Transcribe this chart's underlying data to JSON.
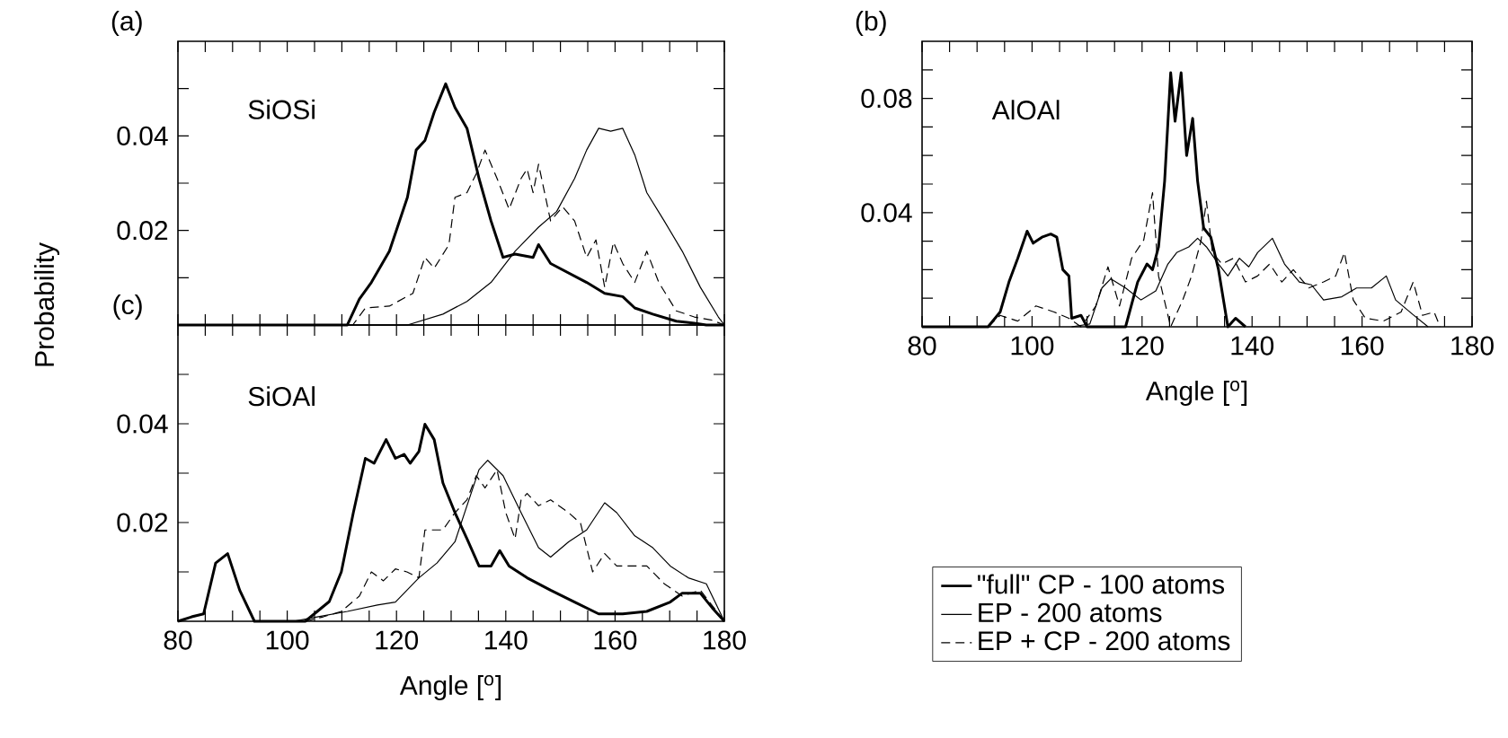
{
  "chart_data": [
    {
      "type": "line",
      "title": "(a)",
      "annotations": [
        "SiOSi"
      ],
      "ylabel": "Probability",
      "xlim": [
        80,
        180
      ],
      "ylim": [
        0,
        0.06
      ],
      "xticks": [
        80,
        {
          "value": 85,
          "label": null
        },
        {
          "value": 90,
          "label": null
        },
        {
          "value": 95,
          "label": null
        },
        100,
        {
          "value": 105,
          "label": null
        },
        {
          "value": 110,
          "label": null
        },
        {
          "value": 115,
          "label": null
        },
        120,
        {
          "value": 125,
          "label": null
        },
        {
          "value": 130,
          "label": null
        },
        {
          "value": 135,
          "label": null
        },
        140,
        {
          "value": 145,
          "label": null
        },
        {
          "value": 150,
          "label": null
        },
        {
          "value": 155,
          "label": null
        },
        160,
        {
          "value": 165,
          "label": null
        },
        {
          "value": 170,
          "label": null
        },
        {
          "value": 175,
          "label": null
        },
        180
      ],
      "yticks": [
        {
          "value": 0.01,
          "label": null
        },
        {
          "value": 0.02,
          "label": "0.02"
        },
        {
          "value": 0.03,
          "label": null
        },
        {
          "value": 0.04,
          "label": "0.04"
        },
        {
          "value": 0.05,
          "label": null
        }
      ],
      "tick_labels": "y",
      "series": [
        {
          "color": "#000000",
          "line_style": "solid",
          "x": [
            80,
            111,
            113.2,
            115.4,
            118.7,
            122,
            123.6,
            125.2,
            126.9,
            129,
            130.7,
            132.9,
            135.1,
            137.3,
            139.5,
            141.7,
            145,
            146,
            148.2,
            151.5,
            154.8,
            158.1,
            161.4,
            163.6,
            166.9,
            171.2,
            174.5,
            176.7,
            180
          ],
          "values": [
            0,
            0,
            0.0055,
            0.009,
            0.0156,
            0.027,
            0.037,
            0.039,
            0.045,
            0.051,
            0.046,
            0.0416,
            0.031,
            0.022,
            0.0143,
            0.015,
            0.0143,
            0.017,
            0.013,
            0.011,
            0.009,
            0.0067,
            0.006,
            0.0036,
            0.0023,
            0.0008,
            0.0004,
            0,
            0
          ]
        },
        {
          "color": "#000000",
          "line_style": "solid",
          "x": [
            80,
            122,
            128.5,
            132.9,
            137.3,
            141.7,
            146,
            149.3,
            152.6,
            154.8,
            157,
            159.2,
            161.4,
            163.6,
            165.8,
            169,
            172.3,
            175.6,
            178.9,
            180
          ],
          "values": [
            0,
            0,
            0.0023,
            0.005,
            0.009,
            0.0156,
            0.0207,
            0.024,
            0.031,
            0.037,
            0.0416,
            0.041,
            0.0416,
            0.036,
            0.028,
            0.022,
            0.0156,
            0.008,
            0.0017,
            0
          ]
        },
        {
          "color": "#000000",
          "line_style": "dashed",
          "x": [
            80,
            112,
            114.3,
            118.7,
            123,
            125.2,
            126.9,
            129.6,
            130.7,
            132.9,
            134.6,
            136.2,
            138.4,
            140.6,
            142.8,
            143.9,
            145,
            146,
            148.2,
            150.4,
            152.6,
            154.8,
            156.5,
            158.1,
            159.7,
            161.4,
            163.6,
            165.8,
            168,
            171.2,
            174.5,
            177.8,
            180
          ],
          "values": [
            0,
            0,
            0.0036,
            0.004,
            0.0067,
            0.0143,
            0.012,
            0.017,
            0.027,
            0.028,
            0.032,
            0.037,
            0.031,
            0.0245,
            0.031,
            0.033,
            0.028,
            0.034,
            0.022,
            0.025,
            0.022,
            0.0143,
            0.018,
            0.008,
            0.0175,
            0.013,
            0.009,
            0.0156,
            0.009,
            0.003,
            0.0017,
            0.001,
            0
          ]
        }
      ]
    },
    {
      "type": "line",
      "title": "(b)",
      "annotations": [
        "AlOAl"
      ],
      "xlabel": "Angle [$^{o}$]",
      "xlim": [
        80,
        180
      ],
      "ylim": [
        0,
        0.1
      ],
      "xticks": [
        80,
        {
          "value": 85,
          "label": null
        },
        {
          "value": 90,
          "label": null
        },
        {
          "value": 95,
          "label": null
        },
        100,
        {
          "value": 105,
          "label": null
        },
        {
          "value": 110,
          "label": null
        },
        {
          "value": 115,
          "label": null
        },
        120,
        {
          "value": 125,
          "label": null
        },
        {
          "value": 130,
          "label": null
        },
        {
          "value": 135,
          "label": null
        },
        140,
        {
          "value": 145,
          "label": null
        },
        {
          "value": 150,
          "label": null
        },
        {
          "value": 155,
          "label": null
        },
        160,
        {
          "value": 165,
          "label": null
        },
        {
          "value": 170,
          "label": null
        },
        {
          "value": 175,
          "label": null
        },
        180
      ],
      "yticks": [
        {
          "value": 0.01,
          "label": null
        },
        {
          "value": 0.02,
          "label": null
        },
        {
          "value": 0.03,
          "label": null
        },
        {
          "value": 0.04,
          "label": "0.04"
        },
        {
          "value": 0.05,
          "label": null
        },
        {
          "value": 0.06,
          "label": null
        },
        {
          "value": 0.07,
          "label": null
        },
        {
          "value": 0.08,
          "label": "0.08"
        },
        {
          "value": 0.09,
          "label": null
        }
      ],
      "legend": "bottom",
      "series": [
        {
          "name": "\"full\" CP - 100 atoms",
          "color": "#000000",
          "line_style": "solid",
          "x": [
            80,
            92,
            94.2,
            95.8,
            97.4,
            99.1,
            100.2,
            101.8,
            103.4,
            104.5,
            105.6,
            106.7,
            107.2,
            108.9,
            110,
            117,
            119.2,
            120.9,
            121.9,
            123,
            124.1,
            125.2,
            126,
            127.1,
            128.1,
            129.2,
            130.1,
            131.2,
            132.5,
            133.9,
            135.6,
            137,
            138.8
          ],
          "values": [
            0,
            0,
            0.0052,
            0.0157,
            0.024,
            0.0335,
            0.0293,
            0.0314,
            0.0325,
            0.0314,
            0.02,
            0.0178,
            0.003,
            0.004,
            0,
            0,
            0.0157,
            0.022,
            0.02,
            0.028,
            0.051,
            0.089,
            0.072,
            0.089,
            0.06,
            0.073,
            0.051,
            0.0346,
            0.0314,
            0.02,
            0,
            0.003,
            0
          ]
        },
        {
          "name": "EP - 200 atoms",
          "color": "#000000",
          "line_style": "solid",
          "x": [
            107.2,
            110.5,
            112.7,
            114.3,
            117,
            119.8,
            122.5,
            124.7,
            126.3,
            128.5,
            130.1,
            131.7,
            133.9,
            135.6,
            137.7,
            139.4,
            141,
            143.7,
            145.9,
            148.6,
            150.8,
            153,
            156.3,
            159,
            161.7,
            164.4,
            166.1,
            169.3,
            172
          ],
          "values": [
            0,
            0.001,
            0.0136,
            0.0168,
            0.0136,
            0.0094,
            0.0126,
            0.022,
            0.026,
            0.028,
            0.031,
            0.028,
            0.022,
            0.0178,
            0.024,
            0.021,
            0.026,
            0.031,
            0.022,
            0.0157,
            0.0147,
            0.0094,
            0.0105,
            0.0136,
            0.0136,
            0.0178,
            0.0094,
            0.0042,
            0
          ]
        },
        {
          "name": "EP + CP - 200 atoms",
          "color": "#000000",
          "line_style": "dashed",
          "x": [
            92,
            94.2,
            97.4,
            100.7,
            104,
            106.7,
            108.9,
            111.6,
            113.8,
            115.9,
            118.1,
            120.3,
            121.9,
            123,
            125.2,
            127.4,
            129,
            130.7,
            131.7,
            132.8,
            134.5,
            136.6,
            138.8,
            141,
            143.2,
            145.4,
            147.5,
            150.3,
            153,
            155.2,
            156.8,
            158.4,
            160.6,
            163.9,
            167.1,
            169.3,
            171,
            173.1,
            174.2
          ],
          "values": [
            0,
            0.004,
            0.002,
            0.0073,
            0.0052,
            0.003,
            0,
            0.0073,
            0.021,
            0.0073,
            0.024,
            0.0304,
            0.047,
            0.0178,
            0,
            0.0094,
            0.0178,
            0.03,
            0.044,
            0.026,
            0.022,
            0.024,
            0.0157,
            0.0178,
            0.022,
            0.0157,
            0.02,
            0.0136,
            0.0157,
            0.0178,
            0.026,
            0.0094,
            0.003,
            0.002,
            0.0052,
            0.0157,
            0.004,
            0.0052,
            0
          ]
        }
      ]
    },
    {
      "type": "line",
      "title": "(c)",
      "annotations": [
        "SiOAl"
      ],
      "xlabel": "Angle [$^{o}$]",
      "xlim": [
        80,
        180
      ],
      "ylim": [
        0,
        0.06
      ],
      "xticks": [
        80,
        {
          "value": 85,
          "label": null
        },
        {
          "value": 90,
          "label": null
        },
        {
          "value": 95,
          "label": null
        },
        100,
        {
          "value": 105,
          "label": null
        },
        {
          "value": 110,
          "label": null
        },
        {
          "value": 115,
          "label": null
        },
        120,
        {
          "value": 125,
          "label": null
        },
        {
          "value": 130,
          "label": null
        },
        {
          "value": 135,
          "label": null
        },
        140,
        {
          "value": 145,
          "label": null
        },
        {
          "value": 150,
          "label": null
        },
        {
          "value": 155,
          "label": null
        },
        160,
        {
          "value": 165,
          "label": null
        },
        {
          "value": 170,
          "label": null
        },
        {
          "value": 175,
          "label": null
        },
        180
      ],
      "yticks": [
        {
          "value": 0.01,
          "label": null
        },
        {
          "value": 0.02,
          "label": "0.02"
        },
        {
          "value": 0.03,
          "label": null
        },
        {
          "value": 0.04,
          "label": "0.04"
        },
        {
          "value": 0.05,
          "label": null
        }
      ],
      "series": [
        {
          "color": "#000000",
          "line_style": "solid",
          "x": [
            80,
            82.5,
            84.7,
            86.9,
            89.1,
            91.3,
            94,
            103.3,
            107.7,
            109.9,
            112.1,
            114.3,
            115.9,
            118.1,
            119.8,
            121.4,
            122.5,
            124.1,
            125.2,
            126.9,
            128.5,
            130.7,
            132.9,
            135.1,
            137.3,
            138.9,
            140.6,
            143.9,
            148.2,
            152.6,
            157,
            161.4,
            165.8,
            170.1,
            172.3,
            175.6,
            177.8,
            180
          ],
          "values": [
            0,
            0.0009,
            0.0015,
            0.0118,
            0.0137,
            0.0063,
            0,
            0,
            0.004,
            0.01,
            0.022,
            0.033,
            0.032,
            0.0368,
            0.033,
            0.0338,
            0.032,
            0.0344,
            0.0399,
            0.0368,
            0.028,
            0.022,
            0.0167,
            0.0112,
            0.0112,
            0.0143,
            0.0112,
            0.0088,
            0.0063,
            0.0039,
            0.0015,
            0.0015,
            0.002,
            0.0039,
            0.0057,
            0.0057,
            0.0027,
            0
          ]
        },
        {
          "color": "#000000",
          "line_style": "solid",
          "x": [
            101.1,
            105.5,
            111,
            116.5,
            119.8,
            124.1,
            127.4,
            130.7,
            132.9,
            135.1,
            136.7,
            139.5,
            142.8,
            146,
            148.2,
            151.5,
            154.8,
            158.1,
            160.3,
            163.6,
            166.9,
            170.1,
            173.4,
            176.7,
            180
          ],
          "values": [
            0,
            0.0009,
            0.002,
            0.0033,
            0.0039,
            0.0088,
            0.0118,
            0.0161,
            0.0234,
            0.0307,
            0.0326,
            0.0295,
            0.022,
            0.0149,
            0.013,
            0.0161,
            0.0185,
            0.024,
            0.022,
            0.0173,
            0.0149,
            0.0112,
            0.0088,
            0.0076,
            0
          ]
        },
        {
          "color": "#000000",
          "line_style": "dashed",
          "x": [
            103.3,
            106.6,
            109.9,
            113.2,
            115.4,
            117.6,
            119.8,
            121.9,
            124.1,
            125.2,
            128.5,
            130.7,
            132.9,
            134.6,
            136.2,
            138.4,
            140,
            141.7,
            142.8,
            143.9,
            146,
            148.2,
            151.5,
            153.7,
            155.9,
            158.1,
            160.3,
            163.6,
            165.8,
            169,
            172.3,
            175.6,
            180
          ],
          "values": [
            0,
            0.0009,
            0.002,
            0.0051,
            0.01,
            0.0082,
            0.0106,
            0.01,
            0.0088,
            0.0185,
            0.0185,
            0.022,
            0.0246,
            0.0295,
            0.027,
            0.0307,
            0.022,
            0.0167,
            0.0246,
            0.0259,
            0.0234,
            0.0246,
            0.022,
            0.0198,
            0.01,
            0.0137,
            0.0112,
            0.0112,
            0.0112,
            0.0076,
            0.0051,
            0.0063,
            0
          ]
        }
      ]
    }
  ]
}
